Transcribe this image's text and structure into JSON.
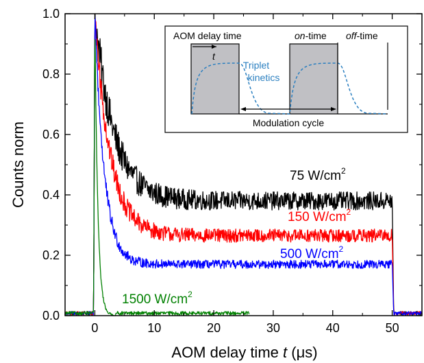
{
  "chart_data": {
    "type": "line",
    "xlabel": {
      "pre": "AOM delay time ",
      "var": "t",
      "post": " (",
      "mu": "μ",
      "unit": "s)"
    },
    "ylabel": "Counts norm",
    "xlim": [
      -5,
      55
    ],
    "ylim": [
      0,
      1.0
    ],
    "xticks": [
      "0",
      "10",
      "20",
      "30",
      "40",
      "50"
    ],
    "xtick_values": [
      0,
      10,
      20,
      30,
      40,
      50
    ],
    "yticks": [
      "0.0",
      "0.2",
      "0.4",
      "0.6",
      "0.8",
      "1.0"
    ],
    "ytick_values": [
      0,
      0.2,
      0.4,
      0.6,
      0.8,
      1.0
    ],
    "grid": false,
    "series": [
      {
        "name": "75 W/cm",
        "sup": "2",
        "color": "#000000",
        "peak": 1.0,
        "plateau": 0.38,
        "tau": 3.2,
        "noise": 0.03,
        "end": 50
      },
      {
        "name": "150 W/cm",
        "sup": "2",
        "color": "#ff0000",
        "peak": 1.0,
        "plateau": 0.265,
        "tau": 2.6,
        "noise": 0.022,
        "end": 50
      },
      {
        "name": "500 W/cm",
        "sup": "2",
        "color": "#0000ff",
        "peak": 1.0,
        "plateau": 0.17,
        "tau": 1.6,
        "noise": 0.014,
        "end": 50
      },
      {
        "name": "1500 W/cm",
        "sup": "2",
        "color": "#008000",
        "peak": 1.0,
        "plateau": 0.0,
        "tau": 0.5,
        "noise": 0.004,
        "end": 3.5
      }
    ],
    "inset": {
      "aom_delay_label": "AOM delay time",
      "t_label": "t",
      "triplet_label_1": "Triplet",
      "triplet_label_2": "kinetics",
      "on_time_italic": "on",
      "on_time_rest": "-time",
      "off_time_italic": "off",
      "off_time_rest": "-time",
      "modulation_label": "Modulation cycle",
      "pulse_fill": "#c0c0c4",
      "kinetics_color": "#2a7fc0"
    }
  }
}
